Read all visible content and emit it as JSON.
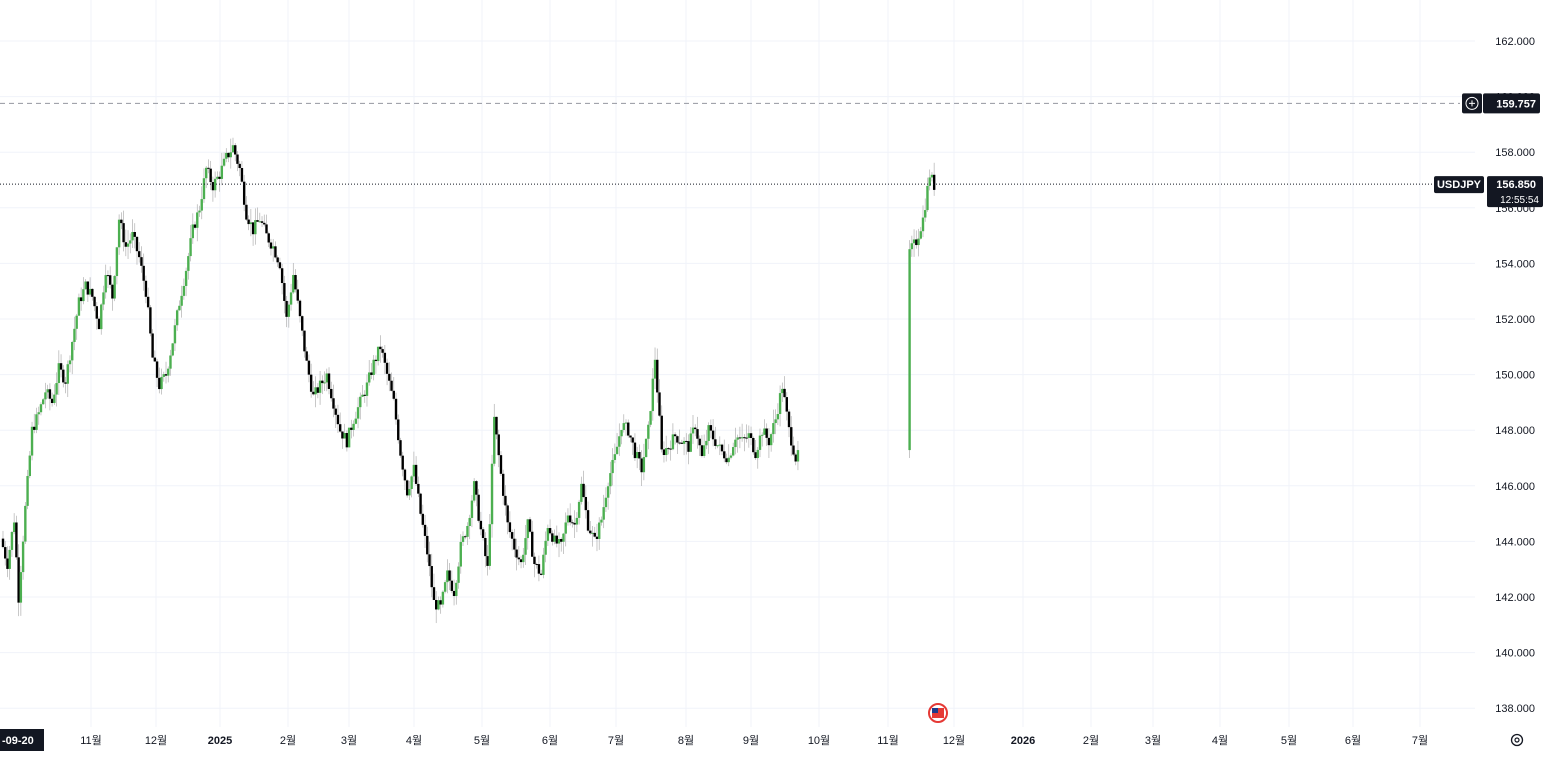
{
  "chart_data": {
    "type": "candlestick",
    "symbol": "USDJPY",
    "ylim": [
      137,
      163
    ],
    "y_ticks": [
      "162.000",
      "160.000",
      "158.000",
      "156.000",
      "154.000",
      "152.000",
      "150.000",
      "148.000",
      "146.000",
      "144.000",
      "142.000",
      "140.000",
      "138.000"
    ],
    "y_tick_values": [
      162,
      160,
      158,
      156,
      154,
      152,
      150,
      148,
      146,
      144,
      142,
      140,
      138
    ],
    "x_ticks": [
      {
        "label": "11월",
        "bold": false
      },
      {
        "label": "12월",
        "bold": false
      },
      {
        "label": "2025",
        "bold": true
      },
      {
        "label": "2월",
        "bold": false
      },
      {
        "label": "3월",
        "bold": false
      },
      {
        "label": "4월",
        "bold": false
      },
      {
        "label": "5월",
        "bold": false
      },
      {
        "label": "6월",
        "bold": false
      },
      {
        "label": "7월",
        "bold": false
      },
      {
        "label": "8월",
        "bold": false
      },
      {
        "label": "9월",
        "bold": false
      },
      {
        "label": "10월",
        "bold": false
      },
      {
        "label": "11월",
        "bold": false
      },
      {
        "label": "12월",
        "bold": false
      },
      {
        "label": "2026",
        "bold": true
      },
      {
        "label": "2월",
        "bold": false
      },
      {
        "label": "3월",
        "bold": false
      },
      {
        "label": "4월",
        "bold": false
      },
      {
        "label": "5월",
        "bold": false
      },
      {
        "label": "6월",
        "bold": false
      },
      {
        "label": "7월",
        "bold": false
      }
    ],
    "cursor_date_label": "-09-20",
    "current_price": {
      "label": "USDJPY",
      "value": "156.850",
      "countdown": "12:55:54",
      "price": 156.85
    },
    "alert_line": {
      "value": "159.757",
      "price": 159.757
    },
    "anchor_closes": [
      [
        0,
        143.8
      ],
      [
        2,
        143.2
      ],
      [
        5,
        144.8
      ],
      [
        7,
        142.0
      ],
      [
        10,
        145.2
      ],
      [
        13,
        148.0
      ],
      [
        16,
        148.6
      ],
      [
        19,
        149.4
      ],
      [
        22,
        149.0
      ],
      [
        25,
        150.2
      ],
      [
        28,
        149.8
      ],
      [
        31,
        151.2
      ],
      [
        34,
        152.6
      ],
      [
        37,
        153.2
      ],
      [
        40,
        152.8
      ],
      [
        43,
        151.8
      ],
      [
        46,
        153.8
      ],
      [
        49,
        152.8
      ],
      [
        52,
        155.6
      ],
      [
        55,
        154.6
      ],
      [
        58,
        155.0
      ],
      [
        61,
        154.2
      ],
      [
        64,
        153.0
      ],
      [
        67,
        150.6
      ],
      [
        70,
        149.6
      ],
      [
        73,
        150.0
      ],
      [
        76,
        151.2
      ],
      [
        79,
        152.6
      ],
      [
        82,
        153.8
      ],
      [
        85,
        155.2
      ],
      [
        88,
        156.0
      ],
      [
        91,
        157.4
      ],
      [
        94,
        156.8
      ],
      [
        97,
        157.2
      ],
      [
        100,
        157.8
      ],
      [
        103,
        158.2
      ],
      [
        106,
        157.4
      ],
      [
        109,
        155.8
      ],
      [
        112,
        155.2
      ],
      [
        115,
        155.6
      ],
      [
        118,
        155.0
      ],
      [
        121,
        154.6
      ],
      [
        124,
        154.0
      ],
      [
        127,
        152.0
      ],
      [
        130,
        153.6
      ],
      [
        133,
        152.0
      ],
      [
        136,
        150.4
      ],
      [
        139,
        149.2
      ],
      [
        142,
        149.6
      ],
      [
        145,
        150.0
      ],
      [
        148,
        149.0
      ],
      [
        151,
        148.0
      ],
      [
        154,
        147.6
      ],
      [
        157,
        148.4
      ],
      [
        160,
        149.0
      ],
      [
        163,
        149.6
      ],
      [
        166,
        150.4
      ],
      [
        169,
        151.0
      ],
      [
        172,
        150.0
      ],
      [
        175,
        149.0
      ],
      [
        178,
        147.2
      ],
      [
        181,
        145.8
      ],
      [
        184,
        146.6
      ],
      [
        187,
        145.0
      ],
      [
        190,
        143.6
      ],
      [
        193,
        141.8
      ],
      [
        196,
        141.6
      ],
      [
        199,
        142.8
      ],
      [
        202,
        142.2
      ],
      [
        205,
        143.8
      ],
      [
        208,
        144.6
      ],
      [
        211,
        146.0
      ],
      [
        214,
        144.4
      ],
      [
        217,
        143.0
      ],
      [
        220,
        148.4
      ],
      [
        223,
        146.4
      ],
      [
        226,
        144.6
      ],
      [
        229,
        143.8
      ],
      [
        232,
        143.2
      ],
      [
        235,
        144.6
      ],
      [
        238,
        143.2
      ],
      [
        241,
        142.8
      ],
      [
        244,
        144.6
      ],
      [
        247,
        144.0
      ],
      [
        250,
        143.8
      ],
      [
        253,
        145.0
      ],
      [
        256,
        144.6
      ],
      [
        259,
        146.0
      ],
      [
        262,
        144.6
      ],
      [
        265,
        144.0
      ],
      [
        268,
        144.8
      ],
      [
        271,
        146.2
      ],
      [
        274,
        147.0
      ],
      [
        277,
        148.2
      ],
      [
        280,
        148.0
      ],
      [
        283,
        147.2
      ],
      [
        286,
        146.6
      ],
      [
        289,
        148.0
      ],
      [
        292,
        150.6
      ],
      [
        295,
        147.2
      ],
      [
        298,
        147.4
      ],
      [
        301,
        147.8
      ],
      [
        304,
        147.6
      ],
      [
        307,
        147.4
      ],
      [
        310,
        148.2
      ],
      [
        313,
        147.0
      ],
      [
        316,
        148.0
      ],
      [
        319,
        147.6
      ],
      [
        322,
        147.2
      ],
      [
        325,
        147.0
      ],
      [
        328,
        147.8
      ],
      [
        331,
        147.6
      ],
      [
        334,
        147.8
      ],
      [
        337,
        147.2
      ],
      [
        340,
        148.0
      ],
      [
        343,
        147.6
      ],
      [
        346,
        148.4
      ],
      [
        349,
        149.6
      ],
      [
        352,
        148.0
      ],
      [
        355,
        147.0
      ],
      [
        358,
        147.2
      ],
      [
        361,
        150.0
      ],
      [
        364,
        152.0
      ],
      [
        367,
        152.6
      ],
      [
        370,
        152.2
      ],
      [
        373,
        151.6
      ],
      [
        376,
        150.4
      ],
      [
        379,
        151.4
      ],
      [
        382,
        152.2
      ],
      [
        385,
        152.8
      ],
      [
        388,
        152.6
      ],
      [
        391,
        153.6
      ],
      [
        394,
        154.2
      ],
      [
        397,
        154.0
      ],
      [
        400,
        153.8
      ],
      [
        403,
        154.0
      ],
      [
        406,
        154.4
      ],
      [
        409,
        154.8
      ],
      [
        412,
        155.6
      ],
      [
        415,
        157.2
      ],
      [
        417,
        156.8
      ]
    ],
    "gap_days": [
      [
        356,
        406
      ]
    ]
  }
}
